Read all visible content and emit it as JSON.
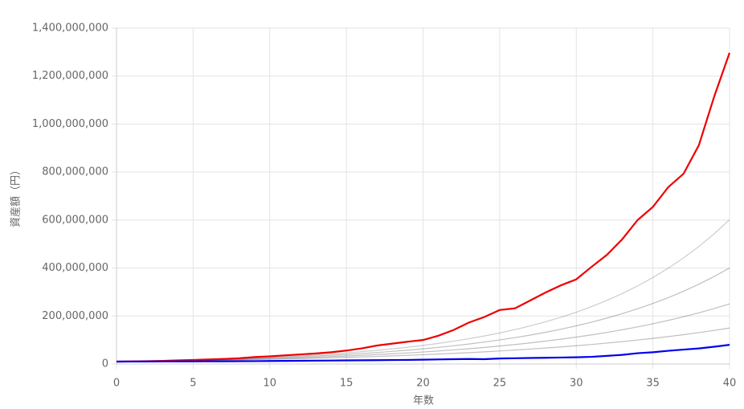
{
  "chart_data": {
    "type": "line",
    "x_label": "年数",
    "y_label": "資産額（円）",
    "x": [
      0,
      1,
      2,
      3,
      4,
      5,
      6,
      7,
      8,
      9,
      10,
      11,
      12,
      13,
      14,
      15,
      16,
      17,
      18,
      19,
      20,
      21,
      22,
      23,
      24,
      25,
      26,
      27,
      28,
      29,
      30,
      31,
      32,
      33,
      34,
      35,
      36,
      37,
      38,
      39,
      40
    ],
    "xlim": [
      0,
      40
    ],
    "xticks": [
      0,
      5,
      10,
      15,
      20,
      25,
      30,
      35,
      40
    ],
    "ylim": [
      0,
      1400000000
    ],
    "yticks": [
      {
        "value": 0,
        "label": "0"
      },
      {
        "value": 200000000,
        "label": "200,000,000"
      },
      {
        "value": 400000000,
        "label": "400,000,000"
      },
      {
        "value": 600000000,
        "label": "600,000,000"
      },
      {
        "value": 800000000,
        "label": "800,000,000"
      },
      {
        "value": 1000000000,
        "label": "1,000,000,000"
      },
      {
        "value": 1200000000,
        "label": "1,200,000,000"
      },
      {
        "value": 1400000000,
        "label": "1,400,000,000"
      }
    ],
    "grid": true,
    "series": [
      {
        "color": "rgba(0,0,0,0.25)",
        "values": [
          10000000.0,
          10700000.0,
          11450000.0,
          12250000.0,
          13110000.0,
          14030000.0,
          15010000.0,
          16060000.0,
          17180000.0,
          18390000.0,
          19680000.0,
          21050000.0,
          22530000.0,
          24100000.0,
          25790000.0,
          27600000.0,
          29530000.0,
          31600000.0,
          33810000.0,
          36180000.0,
          38710000.0,
          41420000.0,
          44320000.0,
          47420000.0,
          50740000.0,
          54300000.0,
          58100000.0,
          62170000.0,
          66520000.0,
          71180000.0,
          76160000.0,
          81490000.0,
          87200000.0,
          93300000.0,
          99830000.0,
          106800000.0,
          114300000.0,
          122300000.0,
          130900000.0,
          140100000.0,
          149900000.0
        ]
      },
      {
        "color": "rgba(0,0,0,0.25)",
        "values": [
          10000000.0,
          10840000.0,
          11750000.0,
          12730000.0,
          13800000.0,
          14960000.0,
          16210000.0,
          17570000.0,
          19040000.0,
          20640000.0,
          22370000.0,
          24250000.0,
          26280000.0,
          28490000.0,
          30880000.0,
          33470000.0,
          36270000.0,
          39320000.0,
          42620000.0,
          46190000.0,
          50060000.0,
          54260000.0,
          58820000.0,
          63750000.0,
          69100000.0,
          74900000.0,
          81180000.0,
          87990000.0,
          95370000.0,
          103400000.0,
          112100000.0,
          121500000.0,
          131600000.0,
          142700000.0,
          154600000.0,
          167600000.0,
          181700000.0,
          196900000.0,
          213400000.0,
          231300000.0,
          250700000.0
        ]
      },
      {
        "color": "rgba(0,0,0,0.25)",
        "values": [
          10000000.0,
          10970000.0,
          12020000.0,
          13180000.0,
          14460000.0,
          15860000.0,
          17390000.0,
          19070000.0,
          20910000.0,
          22930000.0,
          25140000.0,
          27570000.0,
          30240000.0,
          33160000.0,
          36360000.0,
          39880000.0,
          43730000.0,
          47950000.0,
          52590000.0,
          57670000.0,
          63240000.0,
          69350000.0,
          76050000.0,
          83400000.0,
          91460000.0,
          100300000.0,
          110000000.0,
          120600000.0,
          132300000.0,
          145000000.0,
          159100000.0,
          174400000.0,
          191300000.0,
          209800000.0,
          230000000.0,
          252300000.0,
          276600000.0,
          303400000.0,
          332700000.0,
          364800000.0,
          400100000.0
        ]
      },
      {
        "color": "rgba(0,0,0,0.2)",
        "values": [
          10000000.0,
          11080000.0,
          12270000.0,
          13600000.0,
          15060000.0,
          16690000.0,
          18490000.0,
          20480000.0,
          22690000.0,
          25140000.0,
          27840000.0,
          30850000.0,
          34180000.0,
          37860000.0,
          41950000.0,
          46470000.0,
          51480000.0,
          57030000.0,
          63180000.0,
          70000000.0,
          77550000.0,
          85910000.0,
          95170000.0,
          105400000.0,
          116800000.0,
          129400000.0,
          143400000.0,
          158800000.0,
          176000000.0,
          194900000.0,
          216000000.0,
          239300000.0,
          265100000.0,
          293700000.0,
          325300000.0,
          360400000.0,
          399300000.0,
          442300000.0,
          490100000.0,
          542900000.0,
          601500000.0
        ]
      },
      {
        "color": "#ee0000",
        "values": [
          10000000.0,
          11000000.0,
          12000000.0,
          13000000.0,
          15000000.0,
          17000000.0,
          19000000.0,
          21000000.0,
          24000000.0,
          29000000.0,
          32000000.0,
          36000000.0,
          40000000.0,
          44000000.0,
          49000000.0,
          56000000.0,
          65000000.0,
          77000000.0,
          85000000.0,
          93000000.0,
          100000000.0,
          118000000.0,
          142000000.0,
          173000000.0,
          196000000.0,
          225000000.0,
          232000000.0,
          265000000.0,
          298000000.0,
          328000000.0,
          353000000.0,
          405000000.0,
          455000000.0,
          520000000.0,
          600000000.0,
          655000000.0,
          737000000.0,
          793000000.0,
          912000000.0,
          1115000000.0,
          1297000000.0
        ]
      },
      {
        "color": "#0000ee",
        "values": [
          10000000.0,
          10200000.0,
          10400000.0,
          10600000.0,
          10800000.0,
          11000000.0,
          11200000.0,
          11400000.0,
          11700000.0,
          12000000.0,
          12500000.0,
          13000000.0,
          13500000.0,
          14000000.0,
          14500000.0,
          15000000.0,
          15500000.0,
          16000000.0,
          16500000.0,
          17000000.0,
          18000000.0,
          19000000.0,
          20000000.0,
          21000000.0,
          20000000.0,
          23000000.0,
          24000000.0,
          25000000.0,
          26000000.0,
          27000000.0,
          28000000.0,
          30000000.0,
          34000000.0,
          38000000.0,
          45000000.0,
          49000000.0,
          55000000.0,
          60000000.0,
          65000000.0,
          72000000.0,
          80000000.0
        ]
      }
    ]
  }
}
